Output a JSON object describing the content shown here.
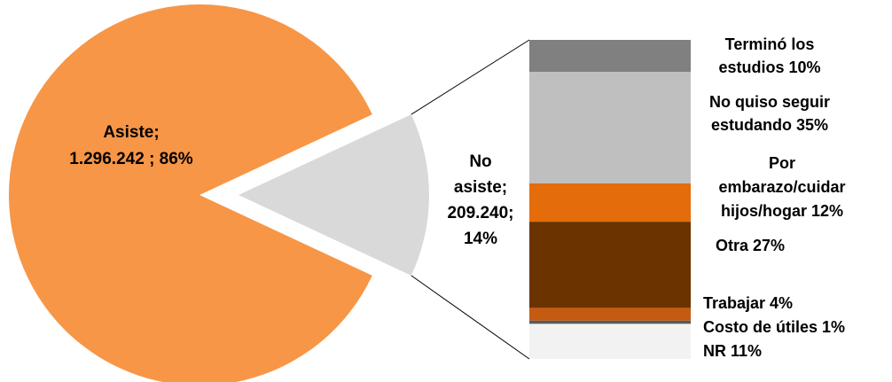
{
  "chart_data": [
    {
      "type": "pie",
      "slices": [
        {
          "label": "Asiste",
          "value": 1296242,
          "value_text": "1.296.242",
          "percent": 86,
          "percent_text": "86%",
          "color": "#f79646"
        },
        {
          "label": "No asiste",
          "value": 209240,
          "value_text": "209.240",
          "percent": 14,
          "percent_text": "14%",
          "color": "#d9d9d9",
          "exploded": true
        }
      ]
    },
    {
      "type": "bar",
      "stacked": true,
      "breakdown_of": "No asiste",
      "segments": [
        {
          "label": "Terminó los estudios",
          "percent": 10,
          "percent_text": "10%",
          "color": "#808080"
        },
        {
          "label": "No quiso seguir estudando",
          "percent": 35,
          "percent_text": "35%",
          "color": "#bfbfbf"
        },
        {
          "label": "Por embarazo/cuidar hijos/hogar",
          "percent": 12,
          "percent_text": "12%",
          "color": "#e46c0a"
        },
        {
          "label": "Otra",
          "percent": 27,
          "percent_text": "27%",
          "color": "#6b3300"
        },
        {
          "label": "Trabajar",
          "percent": 4,
          "percent_text": "4%",
          "color": "#c55a11"
        },
        {
          "label": "Costo de útiles",
          "percent": 1,
          "percent_text": "1%",
          "color": "#595959"
        },
        {
          "label": "NR",
          "percent": 11,
          "percent_text": "11%",
          "color": "#f2f2f2"
        }
      ]
    }
  ]
}
